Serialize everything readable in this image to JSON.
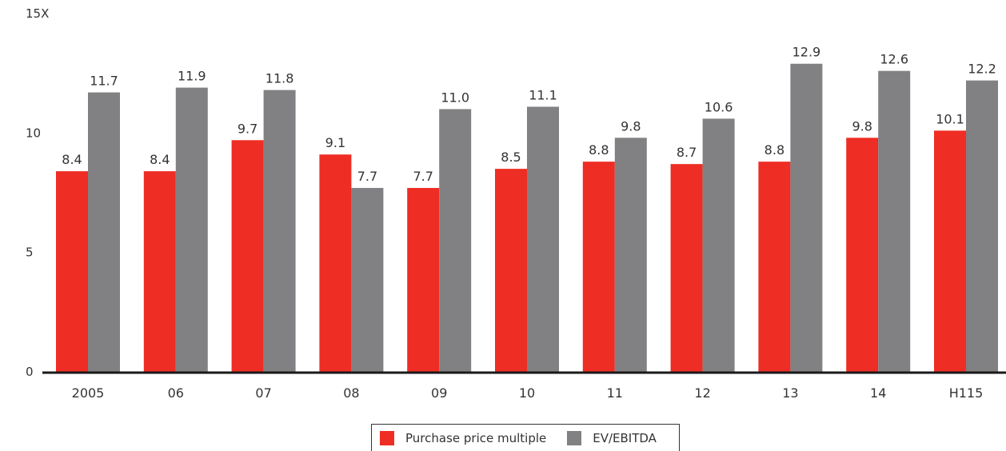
{
  "chart_data": {
    "type": "bar",
    "categories": [
      "2005",
      "06",
      "07",
      "08",
      "09",
      "10",
      "11",
      "12",
      "13",
      "14",
      "H115"
    ],
    "series": [
      {
        "name": "Purchase price multiple",
        "color": "#ee2d24",
        "values": [
          8.4,
          8.4,
          9.7,
          9.1,
          7.7,
          8.5,
          8.8,
          8.7,
          8.8,
          9.8,
          10.1
        ],
        "labels": [
          "8.4",
          "8.4",
          "9.7",
          "9.1",
          "7.7",
          "8.5",
          "8.8",
          "8.7",
          "8.8",
          "9.8",
          "10.1"
        ]
      },
      {
        "name": "EV/EBITDA",
        "color": "#818083",
        "values": [
          11.7,
          11.9,
          11.8,
          7.7,
          11.0,
          11.1,
          9.8,
          10.6,
          12.9,
          12.6,
          12.2
        ],
        "labels": [
          "11.7",
          "11.9",
          "11.8",
          "7.7",
          "11.0",
          "11.1",
          "9.8",
          "10.6",
          "12.9",
          "12.6",
          "12.2"
        ]
      }
    ],
    "yticks": [
      {
        "value": 0,
        "label": "0"
      },
      {
        "value": 5,
        "label": "5"
      },
      {
        "value": 10,
        "label": "10"
      },
      {
        "value": 15,
        "label": "15X"
      }
    ],
    "ylim": [
      0,
      15
    ],
    "grid": false,
    "legend_position": "bottom-center"
  }
}
